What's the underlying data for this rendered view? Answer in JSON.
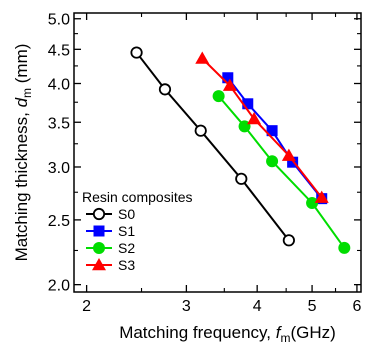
{
  "chart_data": {
    "type": "line",
    "xscale": "log",
    "yscale": "log",
    "xlim": [
      1.9,
      6.1
    ],
    "ylim": [
      1.95,
      5.1
    ],
    "xticks_major": [
      2,
      3,
      4,
      5,
      6
    ],
    "xticks_minor": [
      2.5,
      3.5,
      4.5,
      5.5
    ],
    "yticks_major": [
      2.0,
      2.5,
      3.0,
      3.5,
      4.0,
      4.5,
      5.0
    ],
    "yticks_minor": [
      2.25,
      2.75,
      3.25,
      3.75,
      4.25,
      4.75
    ],
    "xlabel": {
      "prefix": "Matching frequency, ",
      "symbol": "f",
      "sub": "m",
      "suffix": "(GHz)"
    },
    "ylabel": {
      "prefix": "Matching thickness, ",
      "symbol": "d",
      "sub": "m",
      "suffix": " (mm)"
    },
    "legend": {
      "title": "Resin composites",
      "placement": "lower-left"
    },
    "series": [
      {
        "name": "S0",
        "color": "#000000",
        "marker": "open-circle",
        "x": [
          2.45,
          2.75,
          3.18,
          3.75,
          4.55
        ],
        "y": [
          4.45,
          3.92,
          3.4,
          2.88,
          2.33
        ]
      },
      {
        "name": "S1",
        "color": "#0000ff",
        "marker": "filled-square",
        "x": [
          3.55,
          3.85,
          4.25,
          4.62,
          5.2
        ],
        "y": [
          4.08,
          3.73,
          3.4,
          3.05,
          2.69
        ]
      },
      {
        "name": "S2",
        "color": "#00dd00",
        "marker": "filled-circle",
        "x": [
          3.42,
          3.8,
          4.25,
          5.0,
          5.7
        ],
        "y": [
          3.83,
          3.45,
          3.06,
          2.65,
          2.27
        ]
      },
      {
        "name": "S3",
        "color": "#ff0000",
        "marker": "filled-triangle",
        "x": [
          3.2,
          3.58,
          3.95,
          4.55,
          5.2
        ],
        "y": [
          4.36,
          3.97,
          3.54,
          3.12,
          2.7
        ]
      }
    ]
  }
}
